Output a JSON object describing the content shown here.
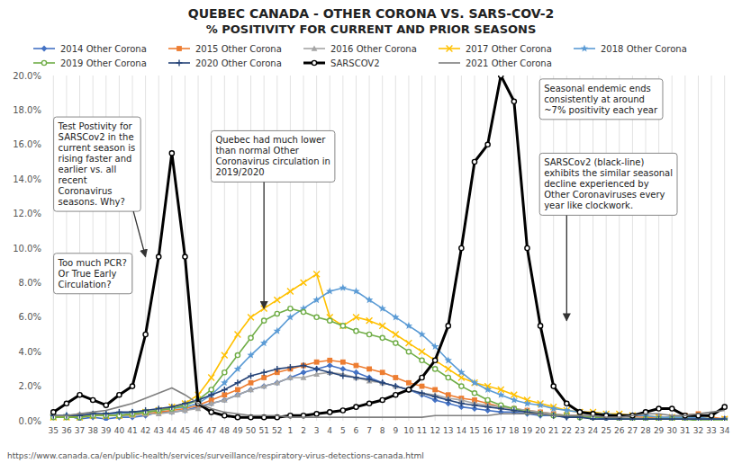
{
  "chart_data": {
    "type": "line",
    "title": "QUEBEC CANADA - OTHER CORONA VS. SARS-COV-2",
    "subtitle": "% POSITIVITY FOR CURRENT AND PRIOR SEASONS",
    "categories": [
      "35",
      "36",
      "37",
      "38",
      "39",
      "40",
      "41",
      "42",
      "43",
      "44",
      "45",
      "46",
      "47",
      "48",
      "49",
      "50",
      "51",
      "52",
      "1",
      "2",
      "3",
      "4",
      "5",
      "6",
      "7",
      "8",
      "9",
      "10",
      "11",
      "12",
      "13",
      "14",
      "15",
      "16",
      "17",
      "18",
      "19",
      "20",
      "21",
      "22",
      "23",
      "24",
      "25",
      "26",
      "27",
      "28",
      "29",
      "30",
      "31",
      "32",
      "33",
      "34"
    ],
    "ylim": [
      0.0,
      0.2
    ],
    "yticks": [
      {
        "value": 0.0,
        "label": "0.0%"
      },
      {
        "value": 0.02,
        "label": "2.0%"
      },
      {
        "value": 0.04,
        "label": "4.0%"
      },
      {
        "value": 0.06,
        "label": "6.0%"
      },
      {
        "value": 0.08,
        "label": "8.0%"
      },
      {
        "value": 0.1,
        "label": "10.0%"
      },
      {
        "value": 0.12,
        "label": "12.0%"
      },
      {
        "value": 0.14,
        "label": "14.0%"
      },
      {
        "value": 0.16,
        "label": "16.0%"
      },
      {
        "value": 0.18,
        "label": "18.0%"
      },
      {
        "value": 0.2,
        "label": "20.0%"
      }
    ],
    "grid": true,
    "legend": "top",
    "series": [
      {
        "name": "2014 Other Corona",
        "color": "#4472C4",
        "marker": "diamond",
        "line_style": "solid",
        "values": [
          0.002,
          0.003,
          0.001,
          0.002,
          0.001,
          0.002,
          0.002,
          0.003,
          0.005,
          0.005,
          0.006,
          0.008,
          0.01,
          0.012,
          0.015,
          0.018,
          0.02,
          0.022,
          0.025,
          0.028,
          0.03,
          0.032,
          0.03,
          0.028,
          0.025,
          0.022,
          0.02,
          0.018,
          0.015,
          0.012,
          0.01,
          0.008,
          0.007,
          0.006,
          0.005,
          0.005,
          0.004,
          0.003,
          0.003,
          0.002,
          0.002,
          0.002,
          0.001,
          0.001,
          0.001,
          0.001,
          0.001,
          0.001,
          0.001,
          0.001,
          0.001,
          0.001
        ]
      },
      {
        "name": "2015 Other Corona",
        "color": "#ED7D31",
        "marker": "square",
        "line_style": "solid",
        "values": [
          0.002,
          0.002,
          0.003,
          0.003,
          0.003,
          0.003,
          0.004,
          0.004,
          0.005,
          0.006,
          0.007,
          0.009,
          0.012,
          0.015,
          0.018,
          0.022,
          0.025,
          0.028,
          0.03,
          0.032,
          0.034,
          0.035,
          0.034,
          0.032,
          0.03,
          0.028,
          0.025,
          0.022,
          0.02,
          0.018,
          0.015,
          0.013,
          0.012,
          0.01,
          0.008,
          0.007,
          0.006,
          0.005,
          0.004,
          0.003,
          0.003,
          0.002,
          0.002,
          0.002,
          0.002,
          0.002,
          0.002,
          0.002,
          0.003,
          0.004,
          0.002,
          0.001
        ]
      },
      {
        "name": "2016 Other Corona",
        "color": "#A5A5A5",
        "marker": "triangle",
        "line_style": "solid",
        "values": [
          0.003,
          0.003,
          0.004,
          0.003,
          0.003,
          0.003,
          0.003,
          0.004,
          0.004,
          0.005,
          0.006,
          0.007,
          0.01,
          0.012,
          0.015,
          0.018,
          0.02,
          0.022,
          0.025,
          0.025,
          0.027,
          0.028,
          0.027,
          0.025,
          0.023,
          0.022,
          0.02,
          0.018,
          0.016,
          0.015,
          0.013,
          0.012,
          0.01,
          0.009,
          0.008,
          0.007,
          0.006,
          0.005,
          0.004,
          0.003,
          0.003,
          0.002,
          0.002,
          0.002,
          0.002,
          0.001,
          0.001,
          0.001,
          0.001,
          0.001,
          0.001,
          0.001
        ]
      },
      {
        "name": "2017 Other Corona",
        "color": "#FFC000",
        "marker": "x",
        "line_style": "solid",
        "values": [
          0.002,
          0.002,
          0.002,
          0.003,
          0.003,
          0.003,
          0.004,
          0.005,
          0.006,
          0.008,
          0.01,
          0.015,
          0.025,
          0.038,
          0.05,
          0.06,
          0.065,
          0.07,
          0.075,
          0.08,
          0.085,
          0.06,
          0.055,
          0.06,
          0.058,
          0.055,
          0.05,
          0.045,
          0.04,
          0.035,
          0.03,
          0.025,
          0.022,
          0.02,
          0.018,
          0.015,
          0.012,
          0.01,
          0.008,
          0.006,
          0.005,
          0.005,
          0.004,
          0.004,
          0.003,
          0.003,
          0.002,
          0.002,
          0.002,
          0.002,
          0.001,
          0.001
        ]
      },
      {
        "name": "2018 Other Corona",
        "color": "#5B9BD5",
        "marker": "star",
        "line_style": "solid",
        "values": [
          0.003,
          0.003,
          0.003,
          0.004,
          0.004,
          0.004,
          0.005,
          0.005,
          0.006,
          0.007,
          0.008,
          0.01,
          0.015,
          0.022,
          0.03,
          0.038,
          0.045,
          0.052,
          0.06,
          0.065,
          0.07,
          0.075,
          0.077,
          0.075,
          0.07,
          0.065,
          0.06,
          0.055,
          0.05,
          0.043,
          0.035,
          0.028,
          0.022,
          0.018,
          0.015,
          0.012,
          0.01,
          0.009,
          0.007,
          0.006,
          0.005,
          0.004,
          0.004,
          0.003,
          0.003,
          0.003,
          0.002,
          0.002,
          0.002,
          0.002,
          0.001,
          0.001
        ]
      },
      {
        "name": "2019 Other Corona",
        "color": "#70AD47",
        "marker": "circle",
        "line_style": "solid",
        "values": [
          0.002,
          0.002,
          0.002,
          0.003,
          0.003,
          0.003,
          0.004,
          0.005,
          0.006,
          0.007,
          0.009,
          0.012,
          0.018,
          0.028,
          0.038,
          0.048,
          0.058,
          0.062,
          0.065,
          0.063,
          0.06,
          0.058,
          0.055,
          0.052,
          0.05,
          0.048,
          0.045,
          0.04,
          0.035,
          0.03,
          0.025,
          0.02,
          0.016,
          0.012,
          0.009,
          0.007,
          0.005,
          0.004,
          0.003,
          0.003,
          0.002,
          0.002,
          0.002,
          0.001,
          0.001,
          0.001,
          0.001,
          0.001,
          0.001,
          0.0,
          0.0,
          0.0
        ]
      },
      {
        "name": "2020 Other Corona",
        "color": "#264478",
        "marker": "plus",
        "line_style": "solid",
        "values": [
          0.003,
          0.003,
          0.003,
          0.004,
          0.004,
          0.005,
          0.005,
          0.006,
          0.007,
          0.008,
          0.01,
          0.012,
          0.015,
          0.018,
          0.022,
          0.026,
          0.028,
          0.03,
          0.031,
          0.032,
          0.03,
          0.028,
          0.026,
          0.025,
          0.024,
          0.022,
          0.02,
          0.018,
          0.016,
          0.014,
          0.012,
          0.01,
          0.009,
          0.008,
          0.007,
          0.006,
          0.005,
          0.004,
          0.003,
          0.002,
          0.002,
          0.001,
          0.001,
          0.001,
          0.001,
          0.001,
          0.001,
          0.001,
          0.001,
          0.001,
          0.001,
          0.001
        ]
      },
      {
        "name": "SARSCOV2",
        "color": "#000000",
        "marker": "circle",
        "line_style": "thick",
        "values": [
          0.005,
          0.01,
          0.015,
          0.012,
          0.009,
          0.015,
          0.02,
          0.05,
          0.095,
          0.155,
          0.095,
          0.01,
          0.005,
          0.003,
          0.002,
          0.002,
          0.002,
          0.002,
          0.003,
          0.003,
          0.004,
          0.005,
          0.006,
          0.008,
          0.01,
          0.012,
          0.015,
          0.018,
          0.025,
          0.035,
          0.055,
          0.1,
          0.15,
          0.16,
          0.2,
          0.185,
          0.1,
          0.055,
          0.02,
          0.01,
          0.005,
          0.004,
          0.003,
          0.003,
          0.003,
          0.005,
          0.007,
          0.007,
          0.003,
          0.003,
          0.003,
          0.008
        ]
      },
      {
        "name": "2021 Other Corona",
        "color": "#7F7F7F",
        "marker": "none",
        "line_style": "solid",
        "values": [
          0.003,
          0.003,
          0.004,
          0.005,
          0.006,
          0.008,
          0.01,
          0.013,
          0.016,
          0.019,
          0.015,
          0.01,
          0.007,
          0.005,
          0.004,
          0.003,
          0.003,
          0.003,
          0.002,
          0.002,
          0.002,
          0.002,
          0.002,
          0.002,
          0.002,
          0.002,
          0.002,
          0.002,
          0.002,
          0.003,
          0.003,
          0.003,
          0.003,
          0.003,
          0.004,
          0.004,
          0.004,
          0.004,
          0.003,
          0.003,
          0.003,
          0.003,
          0.002,
          0.002,
          0.003,
          0.004,
          0.004,
          0.003,
          0.003,
          0.004,
          0.005,
          0.006
        ]
      }
    ],
    "annotations": [
      {
        "text": "Test Postivity for\nSARSCov2 in the\ncurrent season is\nrising faster and\nearlier vs. all\nrecent\nCoronavirus\nseasons. Why?",
        "x": "42",
        "y": 0.095
      },
      {
        "text": "Too much PCR?\nOr True Early\nCirculation?"
      },
      {
        "text": "Quebec had much lower\nthan normal Other\nCoronavirus circulation in\n2019/2020",
        "x": "51",
        "y": 0.065
      },
      {
        "text": "Seasonal endemic ends\nconsistently at around\n~7% positivity each year"
      },
      {
        "text": "SARSCov2 (black-line)\nexhibits the similar seasonal\ndecline experienced by\nOther Coronaviruses every\nyear like clockwork.",
        "x": "22",
        "y": 0.058
      },
      {
        "text": "https://www.canada.ca/en/public-health/services/surveillance/respiratory-virus-detections-canada.html"
      }
    ]
  }
}
